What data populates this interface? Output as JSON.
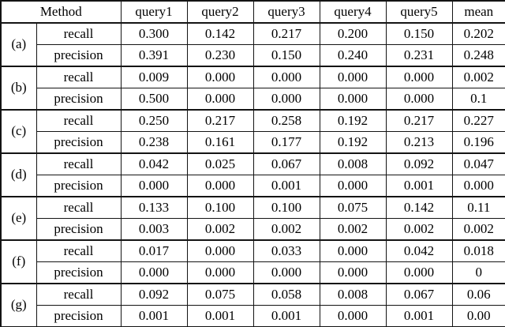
{
  "table": {
    "method_header": "Method",
    "columns": [
      "query1",
      "query2",
      "query3",
      "query4",
      "query5",
      "mean"
    ],
    "metric_labels": [
      "recall",
      "precision"
    ],
    "groups": [
      {
        "label": "(a)",
        "rows": [
          {
            "label": "recall",
            "values": [
              "0.300",
              "0.142",
              "0.217",
              "0.200",
              "0.150"
            ],
            "mean": "0.202",
            "mean_bold": false
          },
          {
            "label": "precision",
            "values": [
              "0.391",
              "0.230",
              "0.150",
              "0.240",
              "0.231"
            ],
            "mean": "0.248",
            "mean_bold": true
          }
        ]
      },
      {
        "label": "(b)",
        "rows": [
          {
            "label": "recall",
            "values": [
              "0.009",
              "0.000",
              "0.000",
              "0.000",
              "0.000"
            ],
            "mean": "0.002",
            "mean_bold": false
          },
          {
            "label": "precision",
            "values": [
              "0.500",
              "0.000",
              "0.000",
              "0.000",
              "0.000"
            ],
            "mean": "0.1",
            "mean_bold": false
          }
        ]
      },
      {
        "label": "(c)",
        "rows": [
          {
            "label": "recall",
            "values": [
              "0.250",
              "0.217",
              "0.258",
              "0.192",
              "0.217"
            ],
            "mean": "0.227",
            "mean_bold": true
          },
          {
            "label": "precision",
            "values": [
              "0.238",
              "0.161",
              "0.177",
              "0.192",
              "0.213"
            ],
            "mean": "0.196",
            "mean_bold": false
          }
        ]
      },
      {
        "label": "(d)",
        "rows": [
          {
            "label": "recall",
            "values": [
              "0.042",
              "0.025",
              "0.067",
              "0.008",
              "0.092"
            ],
            "mean": "0.047",
            "mean_bold": false
          },
          {
            "label": "precision",
            "values": [
              "0.000",
              "0.000",
              "0.001",
              "0.000",
              "0.001"
            ],
            "mean": "0.000",
            "mean_bold": false
          }
        ]
      },
      {
        "label": "(e)",
        "rows": [
          {
            "label": "recall",
            "values": [
              "0.133",
              "0.100",
              "0.100",
              "0.075",
              "0.142"
            ],
            "mean": "0.11",
            "mean_bold": false
          },
          {
            "label": "precision",
            "values": [
              "0.003",
              "0.002",
              "0.002",
              "0.002",
              "0.002"
            ],
            "mean": "0.002",
            "mean_bold": false
          }
        ]
      },
      {
        "label": "(f)",
        "rows": [
          {
            "label": "recall",
            "values": [
              "0.017",
              "0.000",
              "0.033",
              "0.000",
              "0.042"
            ],
            "mean": "0.018",
            "mean_bold": false
          },
          {
            "label": "precision",
            "values": [
              "0.000",
              "0.000",
              "0.000",
              "0.000",
              "0.000"
            ],
            "mean": "0",
            "mean_bold": false
          }
        ]
      },
      {
        "label": "(g)",
        "rows": [
          {
            "label": "recall",
            "values": [
              "0.092",
              "0.075",
              "0.058",
              "0.008",
              "0.067"
            ],
            "mean": "0.06",
            "mean_bold": false
          },
          {
            "label": "precision",
            "values": [
              "0.001",
              "0.001",
              "0.001",
              "0.000",
              "0.001"
            ],
            "mean": "0.00",
            "mean_bold": false
          }
        ]
      }
    ]
  },
  "colors": {
    "text": "#000000",
    "border": "#141414",
    "background": "#ffffff"
  }
}
